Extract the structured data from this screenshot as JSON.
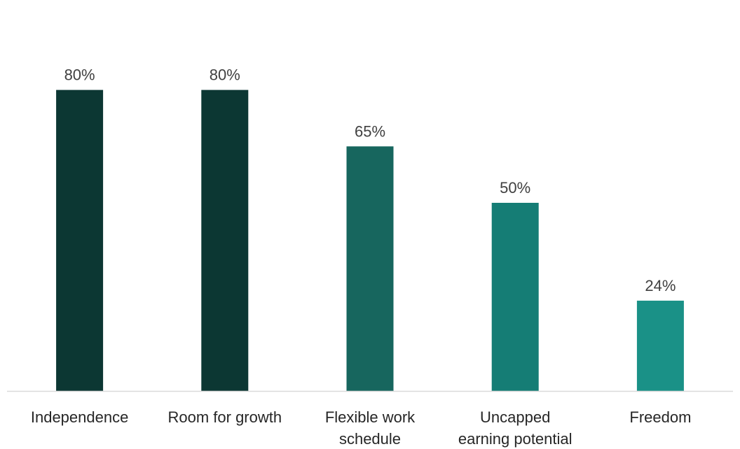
{
  "chart_data": {
    "type": "bar",
    "categories": [
      "Independence",
      "Room for growth",
      "Flexible work schedule",
      "Uncapped earning potential",
      "Freedom"
    ],
    "category_lines": [
      [
        "Independence"
      ],
      [
        "Room for growth"
      ],
      [
        "Flexible work",
        "schedule"
      ],
      [
        "Uncapped",
        "earning potential"
      ],
      [
        "Freedom"
      ]
    ],
    "values": [
      80,
      80,
      65,
      50,
      24
    ],
    "value_labels": [
      "80%",
      "80%",
      "65%",
      "50%",
      "24%"
    ],
    "bar_colors": [
      "#0c3733",
      "#0c3733",
      "#17665e",
      "#157d75",
      "#1a9187"
    ],
    "ylim": [
      0,
      100
    ],
    "title": "",
    "xlabel": "",
    "ylabel": "",
    "grid": false,
    "legend": "none",
    "axis_color": "#d9d9d9"
  }
}
